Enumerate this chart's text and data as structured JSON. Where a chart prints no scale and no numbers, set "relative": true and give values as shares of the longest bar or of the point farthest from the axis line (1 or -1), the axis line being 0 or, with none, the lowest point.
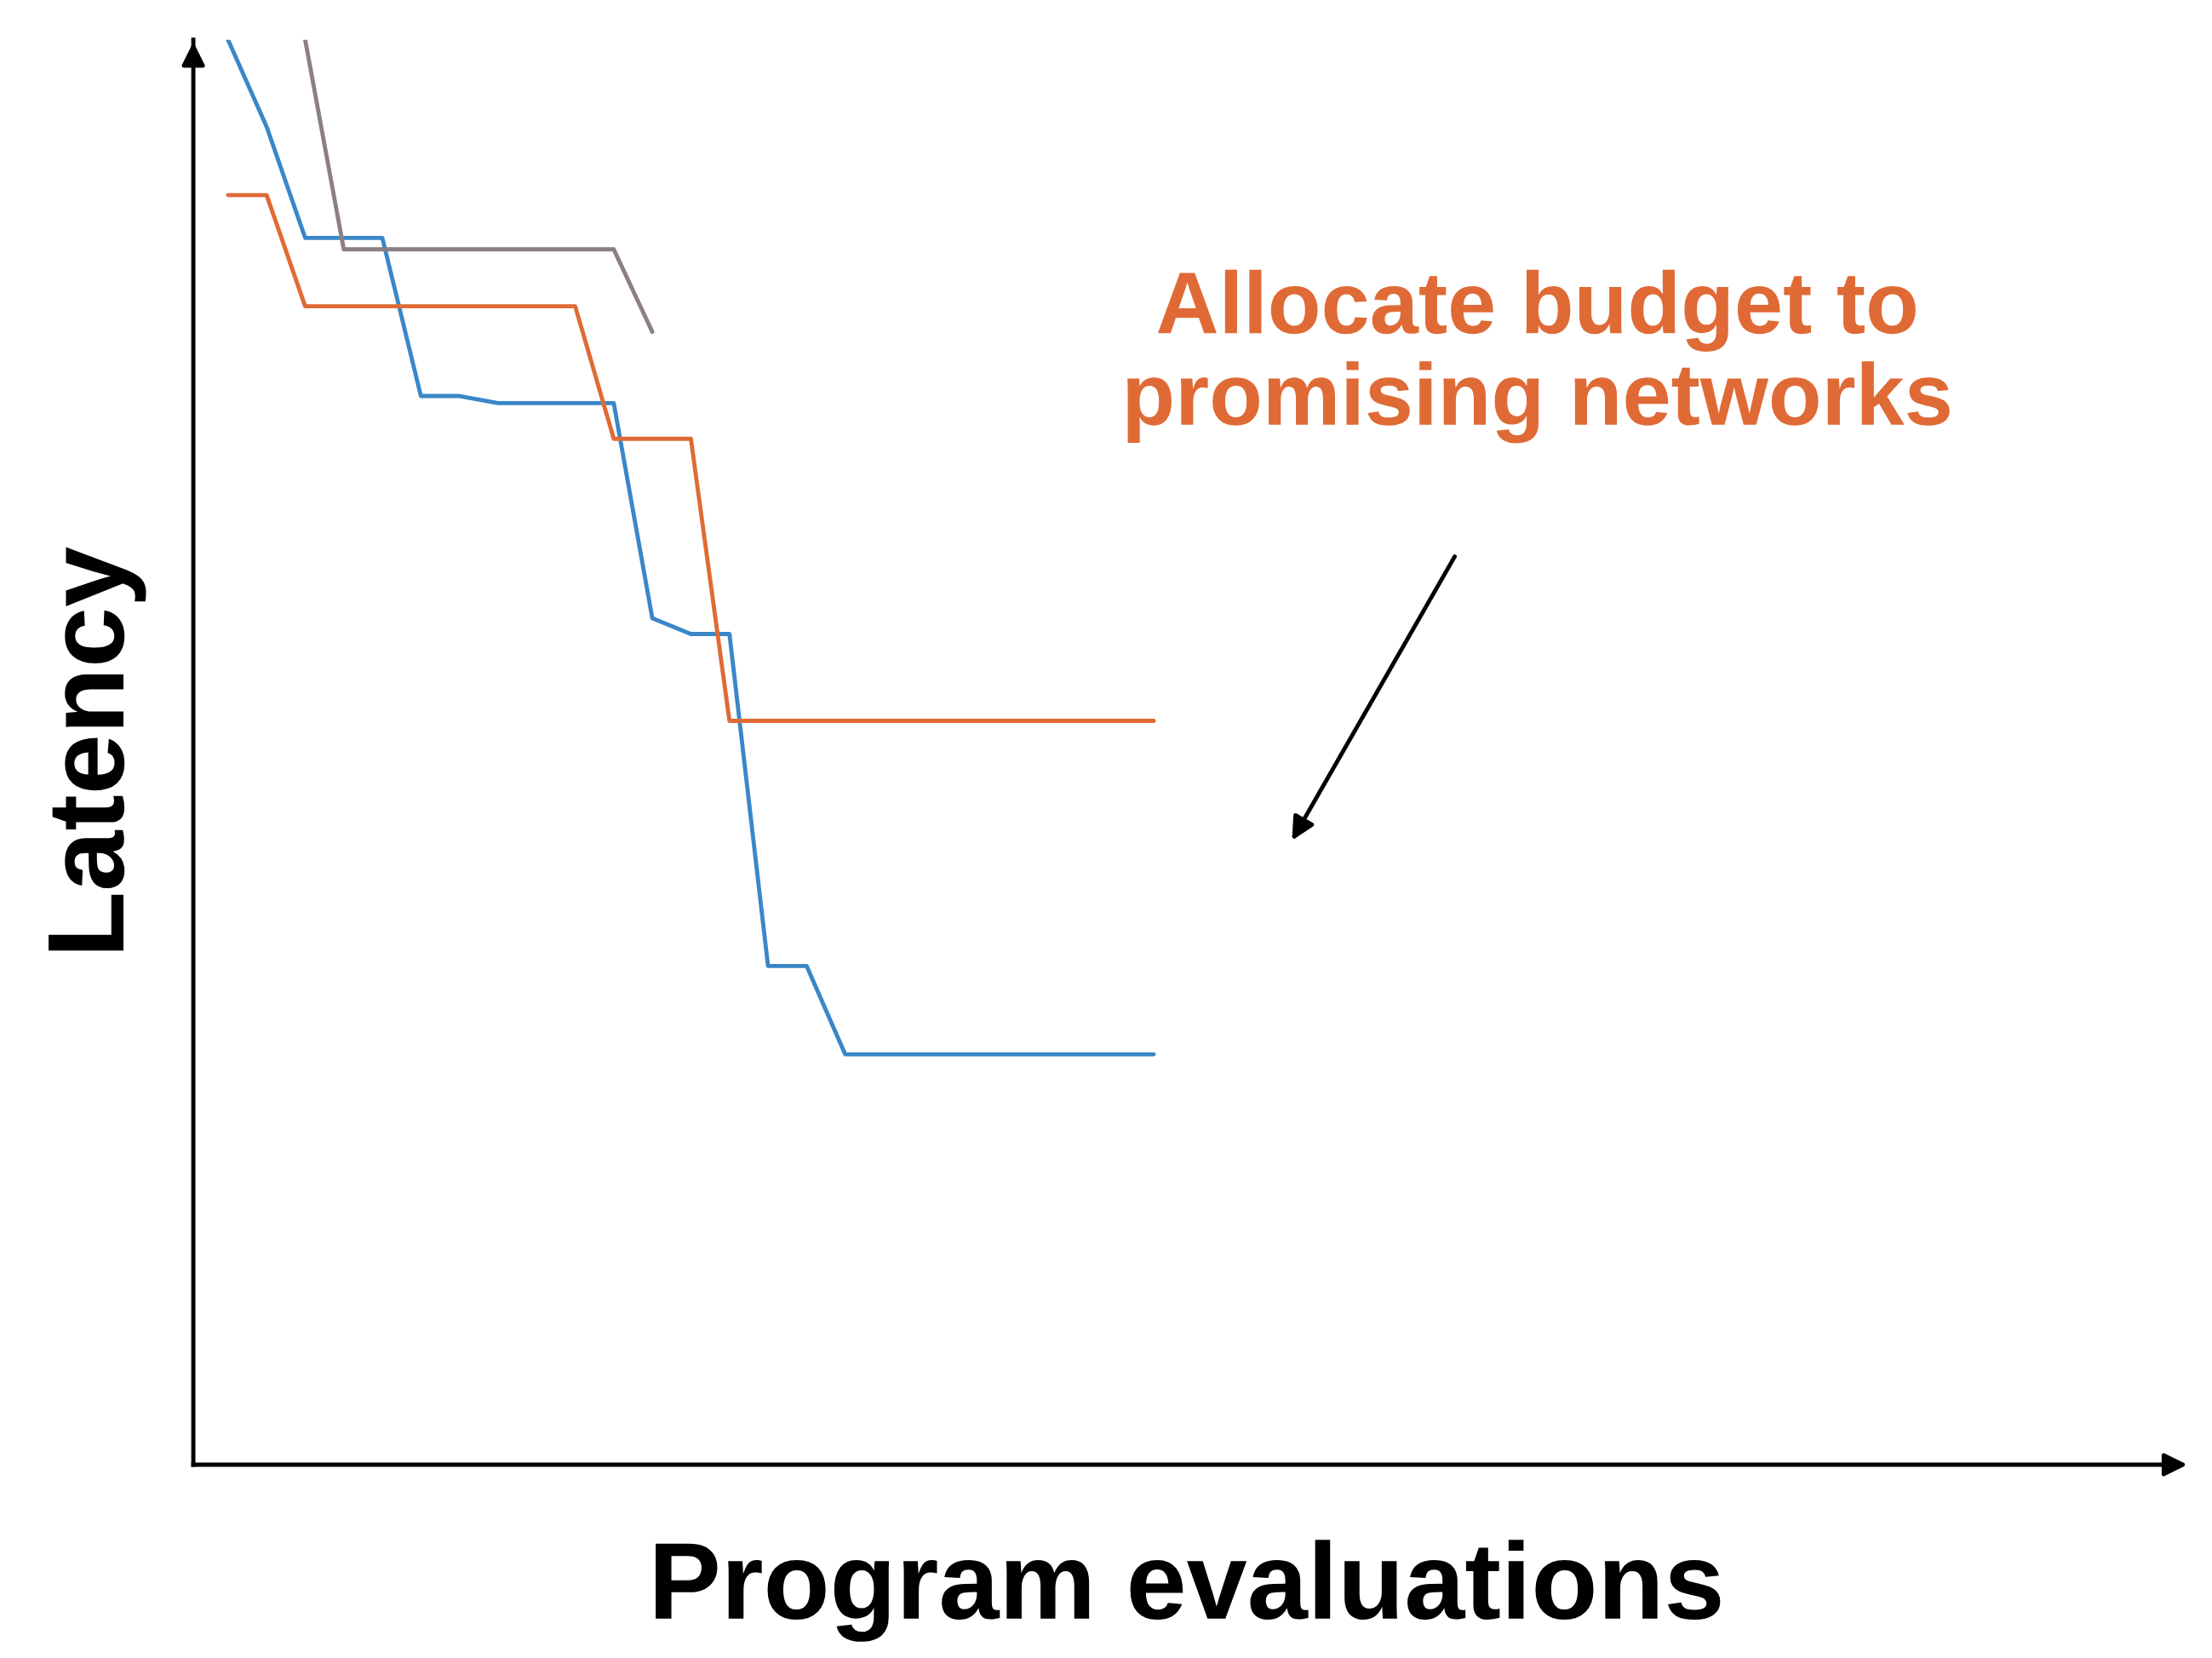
{
  "chart_data": {
    "type": "line",
    "relative": true,
    "xlabel": "Program evaluations",
    "ylabel": "Latency",
    "categories": [
      null,
      null,
      null,
      null,
      null,
      null,
      null,
      null,
      null,
      null,
      null,
      null,
      null,
      null,
      null,
      null,
      null,
      null,
      null,
      null,
      null,
      null,
      null,
      null,
      null,
      null,
      null,
      null,
      null,
      null,
      null,
      null,
      null,
      null,
      null,
      null,
      null,
      null,
      null,
      null,
      null,
      null,
      null,
      null,
      null,
      null,
      null,
      null,
      null,
      null,
      null
    ],
    "series": [
      {
        "color": "#3a87c8",
        "values": [
          1.0,
          0.939,
          0.861,
          0.861,
          0.861,
          0.75,
          0.75,
          0.745,
          0.745,
          0.745,
          0.745,
          0.594,
          0.583,
          0.583,
          0.35,
          0.35,
          0.288,
          0.288,
          0.288,
          0.288,
          0.288,
          0.288,
          0.288,
          0.288,
          0.288,
          null,
          null,
          null,
          null,
          null,
          null,
          null,
          null,
          null,
          null,
          null,
          null,
          null,
          null,
          null,
          null,
          null,
          null,
          null,
          null,
          null,
          null,
          null,
          null,
          null,
          null
        ]
      },
      {
        "color": "#e06a35",
        "values": [
          0.891,
          0.891,
          0.813,
          0.813,
          0.813,
          0.813,
          0.813,
          0.813,
          0.813,
          0.813,
          0.72,
          0.72,
          0.72,
          0.522,
          0.522,
          0.522,
          0.522,
          0.522,
          0.522,
          0.522,
          0.522,
          0.522,
          0.522,
          0.522,
          0.522,
          null,
          null,
          null,
          null,
          null,
          null,
          null,
          null,
          null,
          null,
          null,
          null,
          null,
          null,
          null,
          null,
          null,
          null,
          null,
          null,
          null,
          null,
          null,
          null,
          null,
          null
        ]
      },
      {
        "color": "#8c7f83",
        "values": [
          null,
          null,
          1.0,
          0.853,
          0.853,
          0.853,
          0.853,
          0.853,
          0.853,
          0.853,
          0.853,
          0.795,
          null,
          null,
          null,
          null,
          null,
          null,
          null,
          null,
          null,
          null,
          null,
          null,
          null,
          null,
          null,
          null,
          null,
          null,
          null,
          null,
          null,
          null,
          null,
          null,
          null,
          null,
          null,
          null,
          null,
          null,
          null,
          null,
          null,
          null,
          null,
          null,
          null,
          null,
          null
        ]
      }
    ],
    "annotations": [
      "Allocate budget to\npromising networks"
    ],
    "grid": false,
    "legend": false,
    "marker": "none",
    "line_style": "solid"
  }
}
